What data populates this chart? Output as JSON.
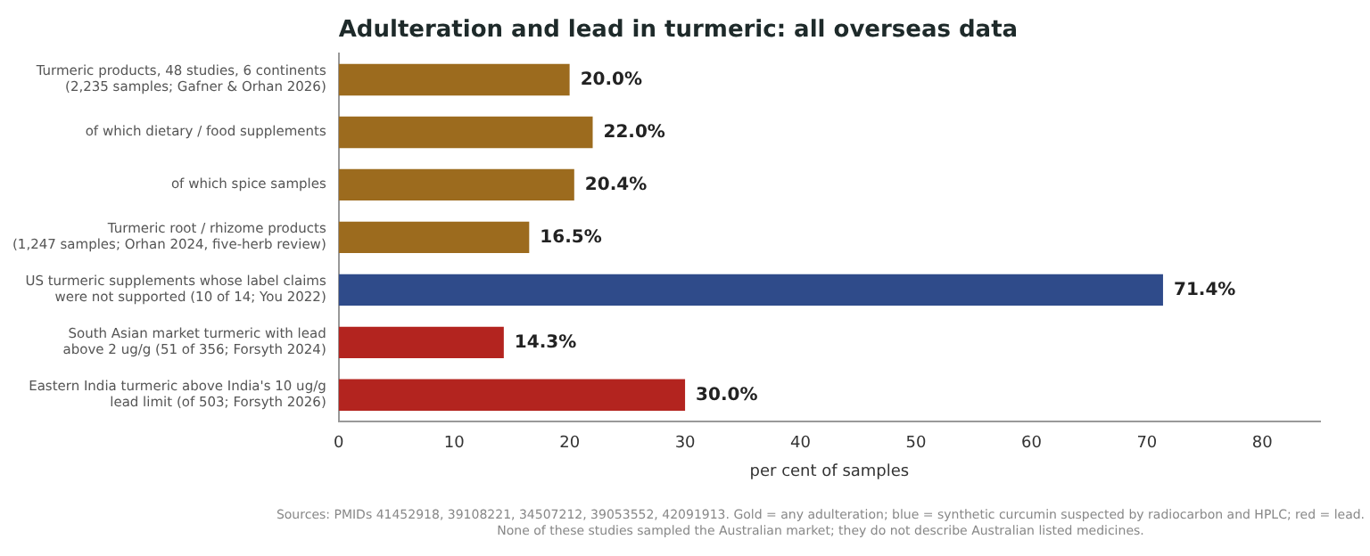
{
  "chart_data": {
    "type": "bar",
    "orientation": "horizontal",
    "title": "Adulteration and lead in turmeric: all overseas data",
    "xlabel": "per cent of samples",
    "categories": [
      "Turmeric products, 48 studies, 6 continents\n(2,235 samples; Gafner & Orhan 2026)",
      "of which dietary / food supplements",
      "of which spice samples",
      "Turmeric root / rhizome products\n(1,247 samples; Orhan 2024, five-herb review)",
      "US turmeric supplements whose label claims\nwere not supported (10 of 14; You 2022)",
      "South Asian market turmeric with lead\nabove 2 ug/g (51 of 356; Forsyth 2024)",
      "Eastern India turmeric above India's 10 ug/g\nlead limit (of 503; Forsyth 2026)"
    ],
    "values": [
      20.0,
      22.0,
      20.4,
      16.5,
      71.4,
      14.3,
      30.0
    ],
    "colors": [
      "#9c6b1e",
      "#9c6b1e",
      "#9c6b1e",
      "#9c6b1e",
      "#2f4b8a",
      "#b3241f",
      "#b3241f"
    ],
    "value_labels": [
      "20.0%",
      "22.0%",
      "20.4%",
      "16.5%",
      "71.4%",
      "14.3%",
      "30.0%"
    ],
    "xlim": [
      0,
      85
    ],
    "xticks": [
      0,
      10,
      20,
      30,
      40,
      50,
      60,
      70,
      80
    ],
    "grid": false,
    "legend": false,
    "annotations": [
      "Sources: PMIDs 41452918, 39108221, 34507212, 39053552, 42091913. Gold = any adulteration; blue = synthetic curcumin suspected by radiocarbon and HPLC; red = lead.\nNone of these studies sampled the Australian market; they do not describe Australian listed medicines."
    ]
  }
}
